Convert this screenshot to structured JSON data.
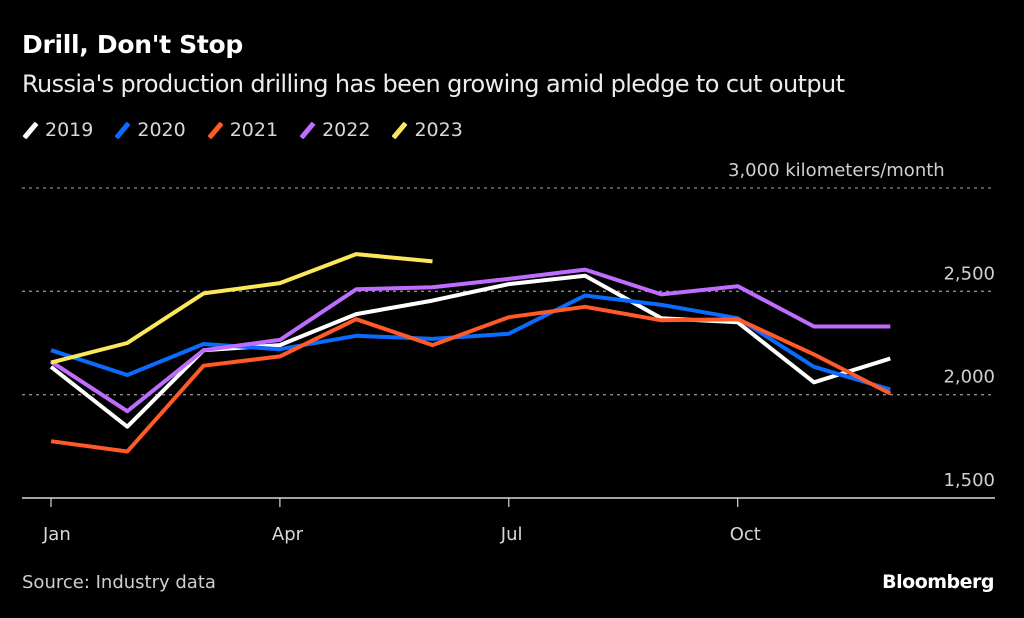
{
  "header": {
    "title": "Drill, Don't Stop",
    "subtitle": "Russia's production drilling has been growing amid pledge to cut output"
  },
  "footer": {
    "source": "Source: Industry data",
    "brand": "Bloomberg"
  },
  "chart_data": {
    "type": "line",
    "title": "Drill, Don't Stop",
    "subtitle": "Russia's production drilling has been growing amid pledge to cut output",
    "xlabel": "",
    "ylabel": "kilometers/month",
    "unit_label": "kilometers/month",
    "x": [
      "Jan",
      "Feb",
      "Mar",
      "Apr",
      "May",
      "Jun",
      "Jul",
      "Aug",
      "Sep",
      "Oct",
      "Nov",
      "Dec"
    ],
    "x_ticks": [
      "Jan",
      "Apr",
      "Jul",
      "Oct"
    ],
    "y_ticks": [
      {
        "value": 3000,
        "label": "3,000"
      },
      {
        "value": 2500,
        "label": "2,500"
      },
      {
        "value": 2000,
        "label": "2,000"
      },
      {
        "value": 1500,
        "label": "1,500"
      }
    ],
    "ylim": [
      1500,
      3000
    ],
    "grid": true,
    "legend_position": "top-left",
    "series": [
      {
        "name": "2019",
        "color": "#ffffff",
        "values": [
          2135,
          1845,
          2215,
          2240,
          2390,
          2455,
          2535,
          2575,
          2370,
          2350,
          2060,
          2175
        ]
      },
      {
        "name": "2020",
        "color": "#0a6cff",
        "values": [
          2215,
          2095,
          2245,
          2220,
          2285,
          2270,
          2295,
          2480,
          2435,
          2370,
          2135,
          2025
        ]
      },
      {
        "name": "2021",
        "color": "#ff5a28",
        "values": [
          1775,
          1725,
          2140,
          2185,
          2365,
          2240,
          2375,
          2425,
          2360,
          2365,
          2195,
          2005
        ]
      },
      {
        "name": "2022",
        "color": "#bf6dff",
        "values": [
          2160,
          1920,
          2215,
          2265,
          2510,
          2520,
          2560,
          2605,
          2485,
          2525,
          2330,
          2330
        ]
      },
      {
        "name": "2023",
        "color": "#fbe85a",
        "values": [
          2155,
          2250,
          2490,
          2540,
          2680,
          2645
        ]
      }
    ]
  }
}
